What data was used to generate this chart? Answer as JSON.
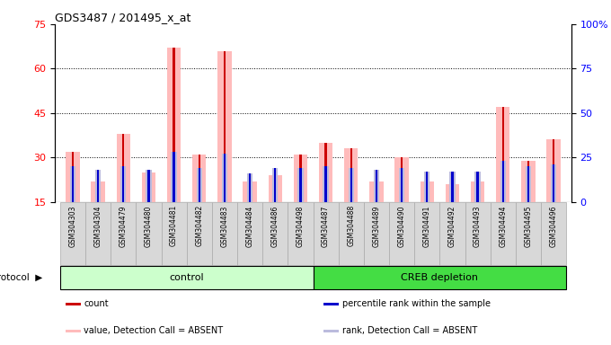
{
  "title": "GDS3487 / 201495_x_at",
  "samples": [
    "GSM304303",
    "GSM304304",
    "GSM304479",
    "GSM304480",
    "GSM304481",
    "GSM304482",
    "GSM304483",
    "GSM304484",
    "GSM304486",
    "GSM304498",
    "GSM304487",
    "GSM304488",
    "GSM304489",
    "GSM304490",
    "GSM304491",
    "GSM304492",
    "GSM304493",
    "GSM304494",
    "GSM304495",
    "GSM304496"
  ],
  "absent_value": [
    32,
    22,
    38,
    25,
    67,
    31,
    66,
    22,
    24,
    31,
    35,
    33,
    22,
    30,
    22,
    21,
    22,
    47,
    29,
    36
  ],
  "absent_rank": [
    20,
    18,
    20,
    18,
    28,
    19,
    27,
    16,
    19,
    19,
    20,
    19,
    18,
    19,
    17,
    17,
    17,
    23,
    20,
    21
  ],
  "count_val": [
    32,
    22,
    38,
    25,
    67,
    31,
    66,
    22,
    24,
    31,
    35,
    33,
    22,
    30,
    22,
    21,
    22,
    47,
    29,
    36
  ],
  "rank_val": [
    20,
    18,
    20,
    18,
    28,
    19,
    27,
    16,
    19,
    19,
    20,
    19,
    18,
    19,
    17,
    17,
    17,
    23,
    20,
    21
  ],
  "left_ylim": [
    15,
    75
  ],
  "left_yticks": [
    15,
    30,
    45,
    60,
    75
  ],
  "right_ylim": [
    0,
    100
  ],
  "right_yticks": [
    0,
    25,
    50,
    75,
    100
  ],
  "color_count": "#cc0000",
  "color_rank": "#0000cc",
  "color_absent_value": "#ffbbbb",
  "color_absent_rank": "#bbbbdd",
  "n_control": 10,
  "n_creb": 10,
  "group_bg_control": "#ccffcc",
  "group_bg_creb": "#44dd44",
  "legend_items": [
    {
      "label": "count",
      "color": "#cc0000"
    },
    {
      "label": "percentile rank within the sample",
      "color": "#0000cc"
    },
    {
      "label": "value, Detection Call = ABSENT",
      "color": "#ffbbbb"
    },
    {
      "label": "rank, Detection Call = ABSENT",
      "color": "#bbbbdd"
    }
  ]
}
